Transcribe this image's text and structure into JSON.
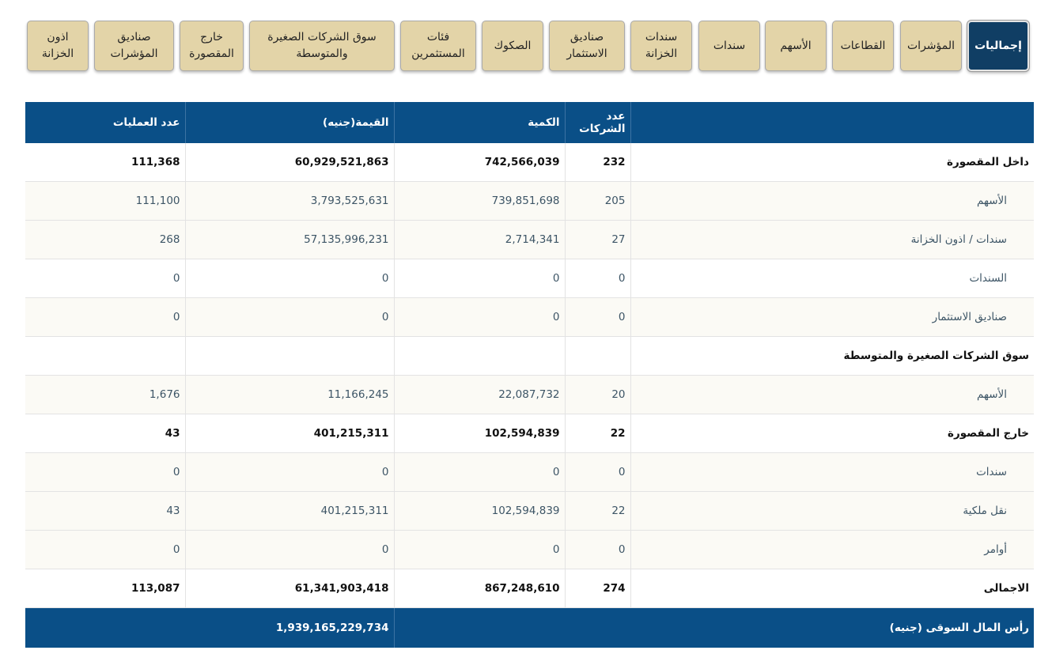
{
  "tabs": [
    {
      "label": "إجماليات",
      "active": true
    },
    {
      "label": "المؤشرات",
      "active": false
    },
    {
      "label": "القطاعات",
      "active": false
    },
    {
      "label": "الأسهم",
      "active": false
    },
    {
      "label": "سندات",
      "active": false
    },
    {
      "label": "سندات\nالخزانة",
      "active": false
    },
    {
      "label": "صناديق\nالاستثمار",
      "active": false
    },
    {
      "label": "الصكوك",
      "active": false
    },
    {
      "label": "فئات\nالمستثمرين",
      "active": false
    },
    {
      "label": "سوق الشركات الصغيرة\nوالمتوسطة",
      "active": false
    },
    {
      "label": "خارج\nالمقصورة",
      "active": false
    },
    {
      "label": "صناديق\nالمؤشرات",
      "active": false
    },
    {
      "label": "اذون\nالخزانة",
      "active": false
    }
  ],
  "table": {
    "headers": {
      "trades": "عدد العمليات",
      "value": "القيمة(جنيه)",
      "volume": "الكمية",
      "companies": "عدد الشركات",
      "label": ""
    },
    "rows": [
      {
        "label": "داخل المقصورة",
        "companies": "232",
        "volume": "742,566,039",
        "value": "60,929,521,863",
        "trades": "111,368",
        "kind": "main"
      },
      {
        "label": "الأسهم",
        "companies": "205",
        "volume": "739,851,698",
        "value": "3,793,525,631",
        "trades": "111,100",
        "kind": "sub"
      },
      {
        "label": "سندات / اذون الخزانة",
        "companies": "27",
        "volume": "2,714,341",
        "value": "57,135,996,231",
        "trades": "268",
        "kind": "sub"
      },
      {
        "label": "السندات",
        "companies": "0",
        "volume": "0",
        "value": "0",
        "trades": "0",
        "kind": "sub-plain"
      },
      {
        "label": "صناديق الاستثمار",
        "companies": "0",
        "volume": "0",
        "value": "0",
        "trades": "0",
        "kind": "sub-plain"
      },
      {
        "label": "سوق الشركات الصغيرة والمتوسطة",
        "companies": "",
        "volume": "",
        "value": "",
        "trades": "",
        "kind": "main"
      },
      {
        "label": "الأسهم",
        "companies": "20",
        "volume": "22,087,732",
        "value": "11,166,245",
        "trades": "1,676",
        "kind": "sub"
      },
      {
        "label": "خارج المقصورة",
        "companies": "22",
        "volume": "102,594,839",
        "value": "401,215,311",
        "trades": "43",
        "kind": "main"
      },
      {
        "label": "سندات",
        "companies": "0",
        "volume": "0",
        "value": "0",
        "trades": "0",
        "kind": "sub"
      },
      {
        "label": "نقل ملكية",
        "companies": "22",
        "volume": "102,594,839",
        "value": "401,215,311",
        "trades": "43",
        "kind": "sub"
      },
      {
        "label": "أوامر",
        "companies": "0",
        "volume": "0",
        "value": "0",
        "trades": "0",
        "kind": "sub"
      },
      {
        "label": "الاجمالى",
        "companies": "274",
        "volume": "867,248,610",
        "value": "61,341,903,418",
        "trades": "113,087",
        "kind": "main"
      }
    ],
    "footer": {
      "label": "رأس المال السوقى (جنيه)",
      "value": "1,939,165,229,734"
    }
  },
  "colors": {
    "header_blue": "#0a4f87",
    "tab_beige": "#e3d4a8",
    "tab_active": "#103e64"
  }
}
